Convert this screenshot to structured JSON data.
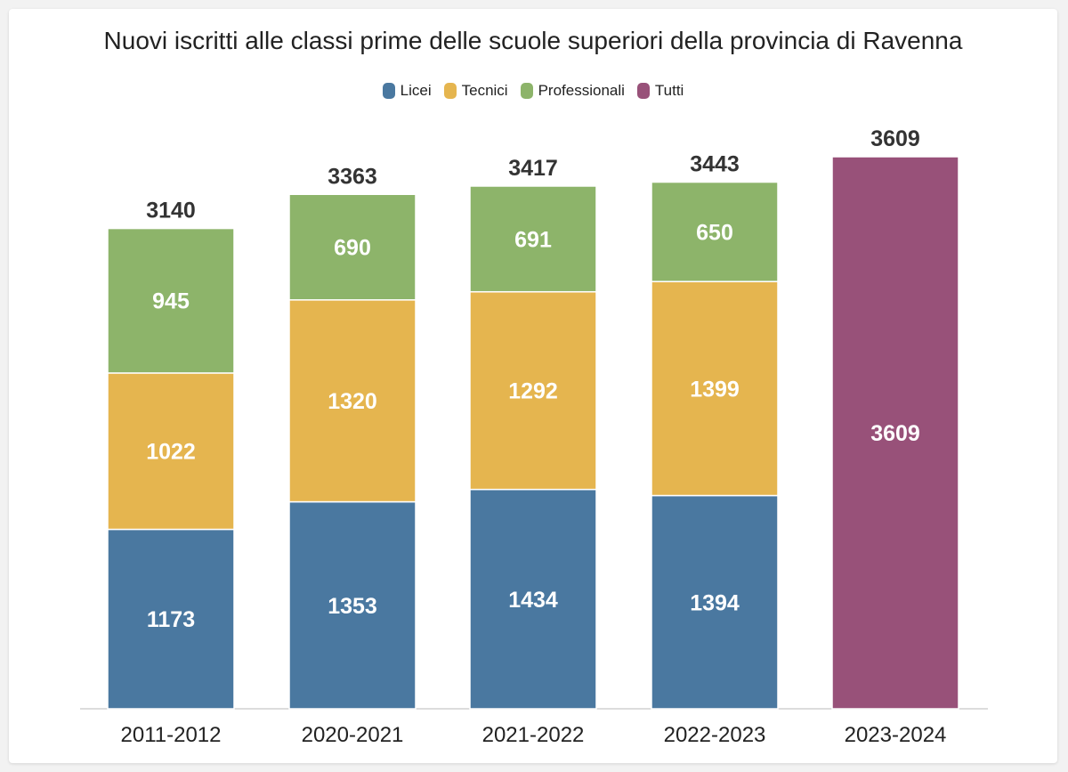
{
  "chart_data": {
    "type": "bar",
    "stacked": true,
    "title": "Nuovi iscritti alle classi prime delle scuole superiori della provincia di Ravenna",
    "categories": [
      "2011-2012",
      "2020-2021",
      "2021-2022",
      "2022-2023",
      "2023-2024"
    ],
    "series": [
      {
        "name": "Licei",
        "color": "#4a78a0",
        "values": [
          1173,
          1353,
          1434,
          1394,
          null
        ]
      },
      {
        "name": "Tecnici",
        "color": "#e5b54f",
        "values": [
          1022,
          1320,
          1292,
          1399,
          null
        ]
      },
      {
        "name": "Professionali",
        "color": "#8db46a",
        "values": [
          945,
          690,
          691,
          650,
          null
        ]
      },
      {
        "name": "Tutti",
        "color": "#985179",
        "values": [
          null,
          null,
          null,
          null,
          3609
        ]
      }
    ],
    "totals": [
      3140,
      3363,
      3417,
      3443,
      3609
    ],
    "legend_position": "top-center",
    "grid": false,
    "ylim": [
      0,
      3609
    ]
  }
}
